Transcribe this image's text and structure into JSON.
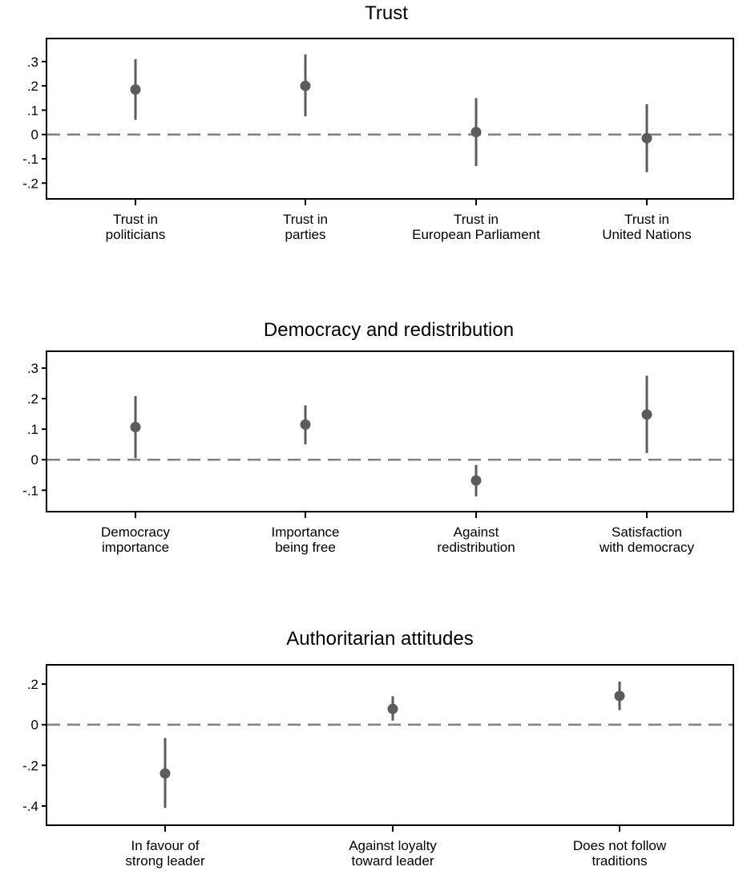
{
  "chart_data": [
    {
      "type": "scatter",
      "style": "coefficient-plot",
      "title": "Trust",
      "categories": [
        [
          "Trust in",
          "politicians"
        ],
        [
          "Trust in",
          "parties"
        ],
        [
          "Trust in",
          "European Parliament"
        ],
        [
          "Trust in",
          "United Nations"
        ]
      ],
      "estimates": [
        0.185,
        0.2,
        0.01,
        -0.015
      ],
      "ci_low": [
        0.06,
        0.075,
        -0.13,
        -0.155
      ],
      "ci_high": [
        0.31,
        0.33,
        0.15,
        0.125
      ],
      "yticks": [
        0.3,
        0.2,
        0.1,
        0,
        -0.1,
        -0.2
      ],
      "ytick_labels": [
        ".3",
        ".2",
        ".1",
        "0",
        "-.1",
        "-.2"
      ],
      "ylim": [
        -0.265,
        0.395
      ],
      "reference_line": 0
    },
    {
      "type": "scatter",
      "style": "coefficient-plot",
      "title": "Democracy and redistribution",
      "categories": [
        [
          "Democracy",
          "importance"
        ],
        [
          "Importance",
          "being free"
        ],
        [
          "Against",
          "redistribution"
        ],
        [
          "Satisfaction",
          "with democracy"
        ]
      ],
      "estimates": [
        0.107,
        0.115,
        -0.068,
        0.148
      ],
      "ci_low": [
        0.005,
        0.05,
        -0.12,
        0.022
      ],
      "ci_high": [
        0.208,
        0.178,
        -0.017,
        0.275
      ],
      "yticks": [
        0.3,
        0.2,
        0.1,
        0,
        -0.1
      ],
      "ytick_labels": [
        ".3",
        ".2",
        ".1",
        "0",
        "-.1"
      ],
      "ylim": [
        -0.17,
        0.355
      ],
      "reference_line": 0
    },
    {
      "type": "scatter",
      "style": "coefficient-plot",
      "title": "Authoritarian attitudes",
      "categories": [
        [
          "In favour of",
          "strong leader"
        ],
        [
          "Against loyalty",
          "toward leader"
        ],
        [
          "Does not follow",
          "traditions"
        ]
      ],
      "estimates": [
        -0.24,
        0.078,
        0.142
      ],
      "ci_low": [
        -0.41,
        0.02,
        0.072
      ],
      "ci_high": [
        -0.065,
        0.14,
        0.212
      ],
      "yticks": [
        0.2,
        0,
        -0.2,
        -0.4
      ],
      "ytick_labels": [
        ".2",
        "0",
        "-.2",
        "-.4"
      ],
      "ylim": [
        -0.495,
        0.295
      ],
      "reference_line": 0
    }
  ]
}
